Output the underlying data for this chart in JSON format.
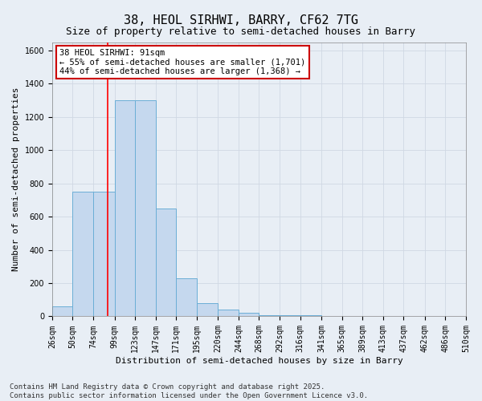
{
  "title1": "38, HEOL SIRHWI, BARRY, CF62 7TG",
  "title2": "Size of property relative to semi-detached houses in Barry",
  "xlabel": "Distribution of semi-detached houses by size in Barry",
  "ylabel": "Number of semi-detached properties",
  "bin_edges": [
    26,
    50,
    74,
    99,
    123,
    147,
    171,
    195,
    220,
    244,
    268,
    292,
    316,
    341,
    365,
    389,
    413,
    437,
    462,
    486,
    510
  ],
  "bar_heights": [
    60,
    750,
    750,
    1300,
    1300,
    650,
    230,
    80,
    40,
    20,
    5,
    5,
    5,
    3,
    3,
    3,
    2,
    2,
    1,
    1
  ],
  "bar_color": "#c5d8ee",
  "bar_edge_color": "#6baed6",
  "bar_edge_width": 0.7,
  "red_line_x": 91,
  "annotation_text": "38 HEOL SIRHWI: 91sqm\n← 55% of semi-detached houses are smaller (1,701)\n44% of semi-detached houses are larger (1,368) →",
  "annotation_box_color": "#ffffff",
  "annotation_box_edge": "#cc0000",
  "ylim": [
    0,
    1650
  ],
  "yticks": [
    0,
    200,
    400,
    600,
    800,
    1000,
    1200,
    1400,
    1600
  ],
  "grid_color": "#d0d8e4",
  "background_color": "#e8eef5",
  "footer_line1": "Contains HM Land Registry data © Crown copyright and database right 2025.",
  "footer_line2": "Contains public sector information licensed under the Open Government Licence v3.0.",
  "title1_fontsize": 11,
  "title2_fontsize": 9,
  "xlabel_fontsize": 8,
  "ylabel_fontsize": 8,
  "tick_fontsize": 7,
  "annotation_fontsize": 7.5,
  "footer_fontsize": 6.5
}
